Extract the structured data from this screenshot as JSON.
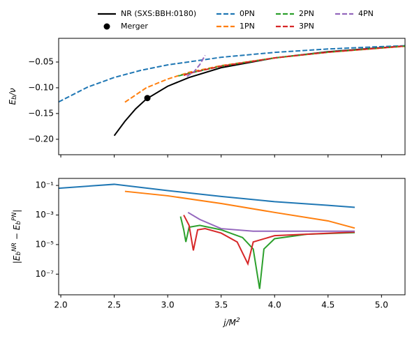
{
  "chart_data": [
    {
      "type": "line",
      "ylabel": "E_b/ν",
      "xlim": [
        1.98,
        5.22
      ],
      "ylim": [
        -0.23,
        -0.004
      ],
      "xticks": [
        2,
        2.5,
        3,
        3.5,
        4,
        4.5,
        5
      ],
      "yticks": [
        {
          "value": -0.2,
          "label": "−0.20"
        },
        {
          "value": -0.15,
          "label": "−0.15"
        },
        {
          "value": -0.1,
          "label": "−0.10"
        },
        {
          "value": -0.05,
          "label": "−0.05"
        }
      ],
      "series": [
        {
          "name": "NR (SXS:BBH:0180)",
          "color": "#000000",
          "linestyle": "solid",
          "x": [
            2.5,
            2.6,
            2.7,
            2.8,
            3.0,
            3.2,
            3.5,
            4.0,
            4.5,
            5.2
          ],
          "values": [
            -0.193,
            -0.165,
            -0.141,
            -0.122,
            -0.097,
            -0.08,
            -0.061,
            -0.042,
            -0.03,
            -0.019
          ]
        },
        {
          "name": "0PN",
          "color": "#1f77b4",
          "linestyle": "dashed",
          "x": [
            1.98,
            2.25,
            2.5,
            2.75,
            3.0,
            3.5,
            4.0,
            4.5,
            5.0,
            5.22
          ],
          "values": [
            -0.1275,
            -0.0988,
            -0.08,
            -0.0661,
            -0.0556,
            -0.0408,
            -0.0313,
            -0.0247,
            -0.02,
            -0.0184
          ]
        },
        {
          "name": "1PN",
          "color": "#ff7f0e",
          "linestyle": "dashed",
          "x": [
            2.6,
            2.8,
            3.0,
            3.2,
            3.5,
            4.0,
            4.5,
            5.22
          ],
          "values": [
            -0.128,
            -0.1,
            -0.083,
            -0.07,
            -0.057,
            -0.042,
            -0.031,
            -0.0195
          ]
        },
        {
          "name": "2PN",
          "color": "#2ca02c",
          "linestyle": "dashed",
          "x": [
            3.1,
            3.2,
            3.5,
            4.0,
            4.5,
            5.22
          ],
          "values": [
            -0.077,
            -0.072,
            -0.058,
            -0.042,
            -0.031,
            -0.019
          ]
        },
        {
          "name": "3PN",
          "color": "#d62728",
          "linestyle": "dashed",
          "x": [
            3.15,
            3.2,
            3.5,
            4.0,
            4.5,
            5.22
          ],
          "values": [
            -0.076,
            -0.072,
            -0.058,
            -0.042,
            -0.031,
            -0.019
          ]
        },
        {
          "name": "4PN",
          "color": "#9467bd",
          "linestyle": "dashed",
          "x": [
            3.18,
            3.25,
            3.3,
            3.35
          ],
          "values": [
            -0.078,
            -0.068,
            -0.055,
            -0.037
          ]
        }
      ],
      "markers": [
        {
          "name": "Merger",
          "color": "#000000",
          "x": [
            2.81
          ],
          "values": [
            -0.12
          ]
        }
      ]
    },
    {
      "type": "line",
      "yscale": "log",
      "xlabel": "j/M^2",
      "ylabel": "|E_b^{NR} − E_b^{PN}|",
      "xlim": [
        1.98,
        5.22
      ],
      "ylim": [
        4e-09,
        0.3
      ],
      "xticks": [
        {
          "value": 2,
          "label": "2.0"
        },
        {
          "value": 2.5,
          "label": "2.5"
        },
        {
          "value": 3,
          "label": "3.0"
        },
        {
          "value": 3.5,
          "label": "3.5"
        },
        {
          "value": 4,
          "label": "4.0"
        },
        {
          "value": 4.5,
          "label": "4.5"
        },
        {
          "value": 5,
          "label": "5.0"
        }
      ],
      "yticks": [
        {
          "value": 1e-07,
          "label": "10⁻⁷"
        },
        {
          "value": 1e-05,
          "label": "10⁻⁵"
        },
        {
          "value": 0.001,
          "label": "10⁻³"
        },
        {
          "value": 0.1,
          "label": "10⁻¹"
        }
      ],
      "series": [
        {
          "color": "#1f77b4",
          "linestyle": "solid",
          "x": [
            1.98,
            2.5,
            3.0,
            3.5,
            4.0,
            4.5,
            4.75
          ],
          "values": [
            0.065,
            0.12,
            0.045,
            0.018,
            0.008,
            0.0045,
            0.0033
          ]
        },
        {
          "color": "#ff7f0e",
          "linestyle": "solid",
          "x": [
            2.6,
            3.0,
            3.5,
            4.0,
            4.5,
            4.75
          ],
          "values": [
            0.04,
            0.02,
            0.006,
            0.0015,
            0.0004,
            0.00013
          ]
        },
        {
          "color": "#2ca02c",
          "linestyle": "solid",
          "x": [
            3.12,
            3.15,
            3.17,
            3.2,
            3.3,
            3.5,
            3.7,
            3.8,
            3.86,
            3.9,
            4.0,
            4.3,
            4.75
          ],
          "values": [
            0.0008,
            0.0001,
            1.5e-05,
            0.00015,
            0.0002,
            0.0001,
            3e-05,
            5e-06,
            1e-08,
            5e-06,
            2.5e-05,
            5e-05,
            6.5e-05
          ]
        },
        {
          "color": "#d62728",
          "linestyle": "solid",
          "x": [
            3.15,
            3.2,
            3.24,
            3.28,
            3.35,
            3.5,
            3.65,
            3.75,
            3.8,
            4.0,
            4.75
          ],
          "values": [
            0.001,
            0.0002,
            4e-06,
            0.0001,
            0.00012,
            6e-05,
            1.5e-05,
            5e-07,
            1.5e-05,
            4e-05,
            7e-05
          ]
        },
        {
          "color": "#9467bd",
          "linestyle": "solid",
          "x": [
            3.19,
            3.3,
            3.5,
            3.8,
            4.75
          ],
          "values": [
            0.0015,
            0.0005,
            0.00012,
            8e-05,
            8e-05
          ]
        }
      ]
    }
  ]
}
